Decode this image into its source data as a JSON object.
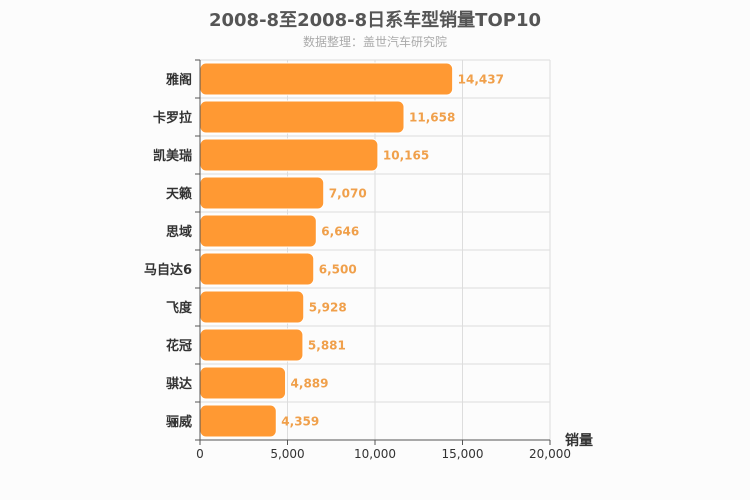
{
  "chart_data": {
    "type": "bar",
    "orientation": "horizontal",
    "title": "2008-8至2008-8日系车型销量TOP10",
    "subtitle": "数据整理：盖世汽车研究院",
    "categories": [
      "雅阁",
      "卡罗拉",
      "凯美瑞",
      "天籁",
      "思域",
      "马自达6",
      "飞度",
      "花冠",
      "骐达",
      "骊威"
    ],
    "values": [
      14437,
      11658,
      10165,
      7070,
      6646,
      6500,
      5928,
      5881,
      4889,
      4359
    ],
    "value_labels": [
      "14,437",
      "11,658",
      "10,165",
      "7,070",
      "6,646",
      "6,500",
      "5,928",
      "5,881",
      "4,889",
      "4,359"
    ],
    "xlabel": "销量",
    "ylabel": "",
    "xlim": [
      0,
      20000
    ],
    "xticks": [
      0,
      5000,
      10000,
      15000,
      20000
    ],
    "xtick_labels": [
      "0",
      "5,000",
      "10,000",
      "15,000",
      "20,000"
    ],
    "grid": true,
    "colors": {
      "bar": "#ff9933",
      "bar_stroke": "#ffffff",
      "label": "#f0a04b",
      "grid": "#dddddd",
      "axis": "#555555",
      "text": "#333333"
    }
  }
}
